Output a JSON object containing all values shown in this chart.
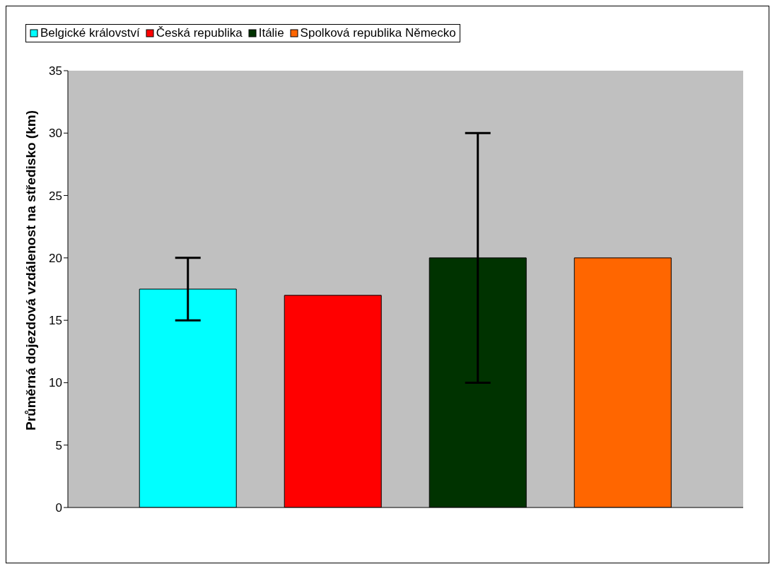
{
  "chart_data": {
    "type": "bar",
    "ylabel": "Průměrná dojezdová vzdálenost na středisko (km)",
    "categories": [
      null
    ],
    "series": [
      {
        "name": "Belgické království",
        "color": "#00ffff",
        "values": [
          17.5
        ],
        "errors": [
          2.5
        ]
      },
      {
        "name": "Česká republika",
        "color": "#ff0000",
        "values": [
          17
        ],
        "errors": [
          null
        ]
      },
      {
        "name": "Itálie",
        "color": "#003300",
        "values": [
          20
        ],
        "errors": [
          10
        ]
      },
      {
        "name": "Spolková republika Německo",
        "color": "#ff6600",
        "values": [
          20
        ],
        "errors": [
          null
        ]
      }
    ],
    "ylim": [
      0,
      35
    ],
    "yticks": [
      0,
      5,
      10,
      15,
      20,
      25,
      30,
      35
    ],
    "legend": "top",
    "grid": false
  }
}
